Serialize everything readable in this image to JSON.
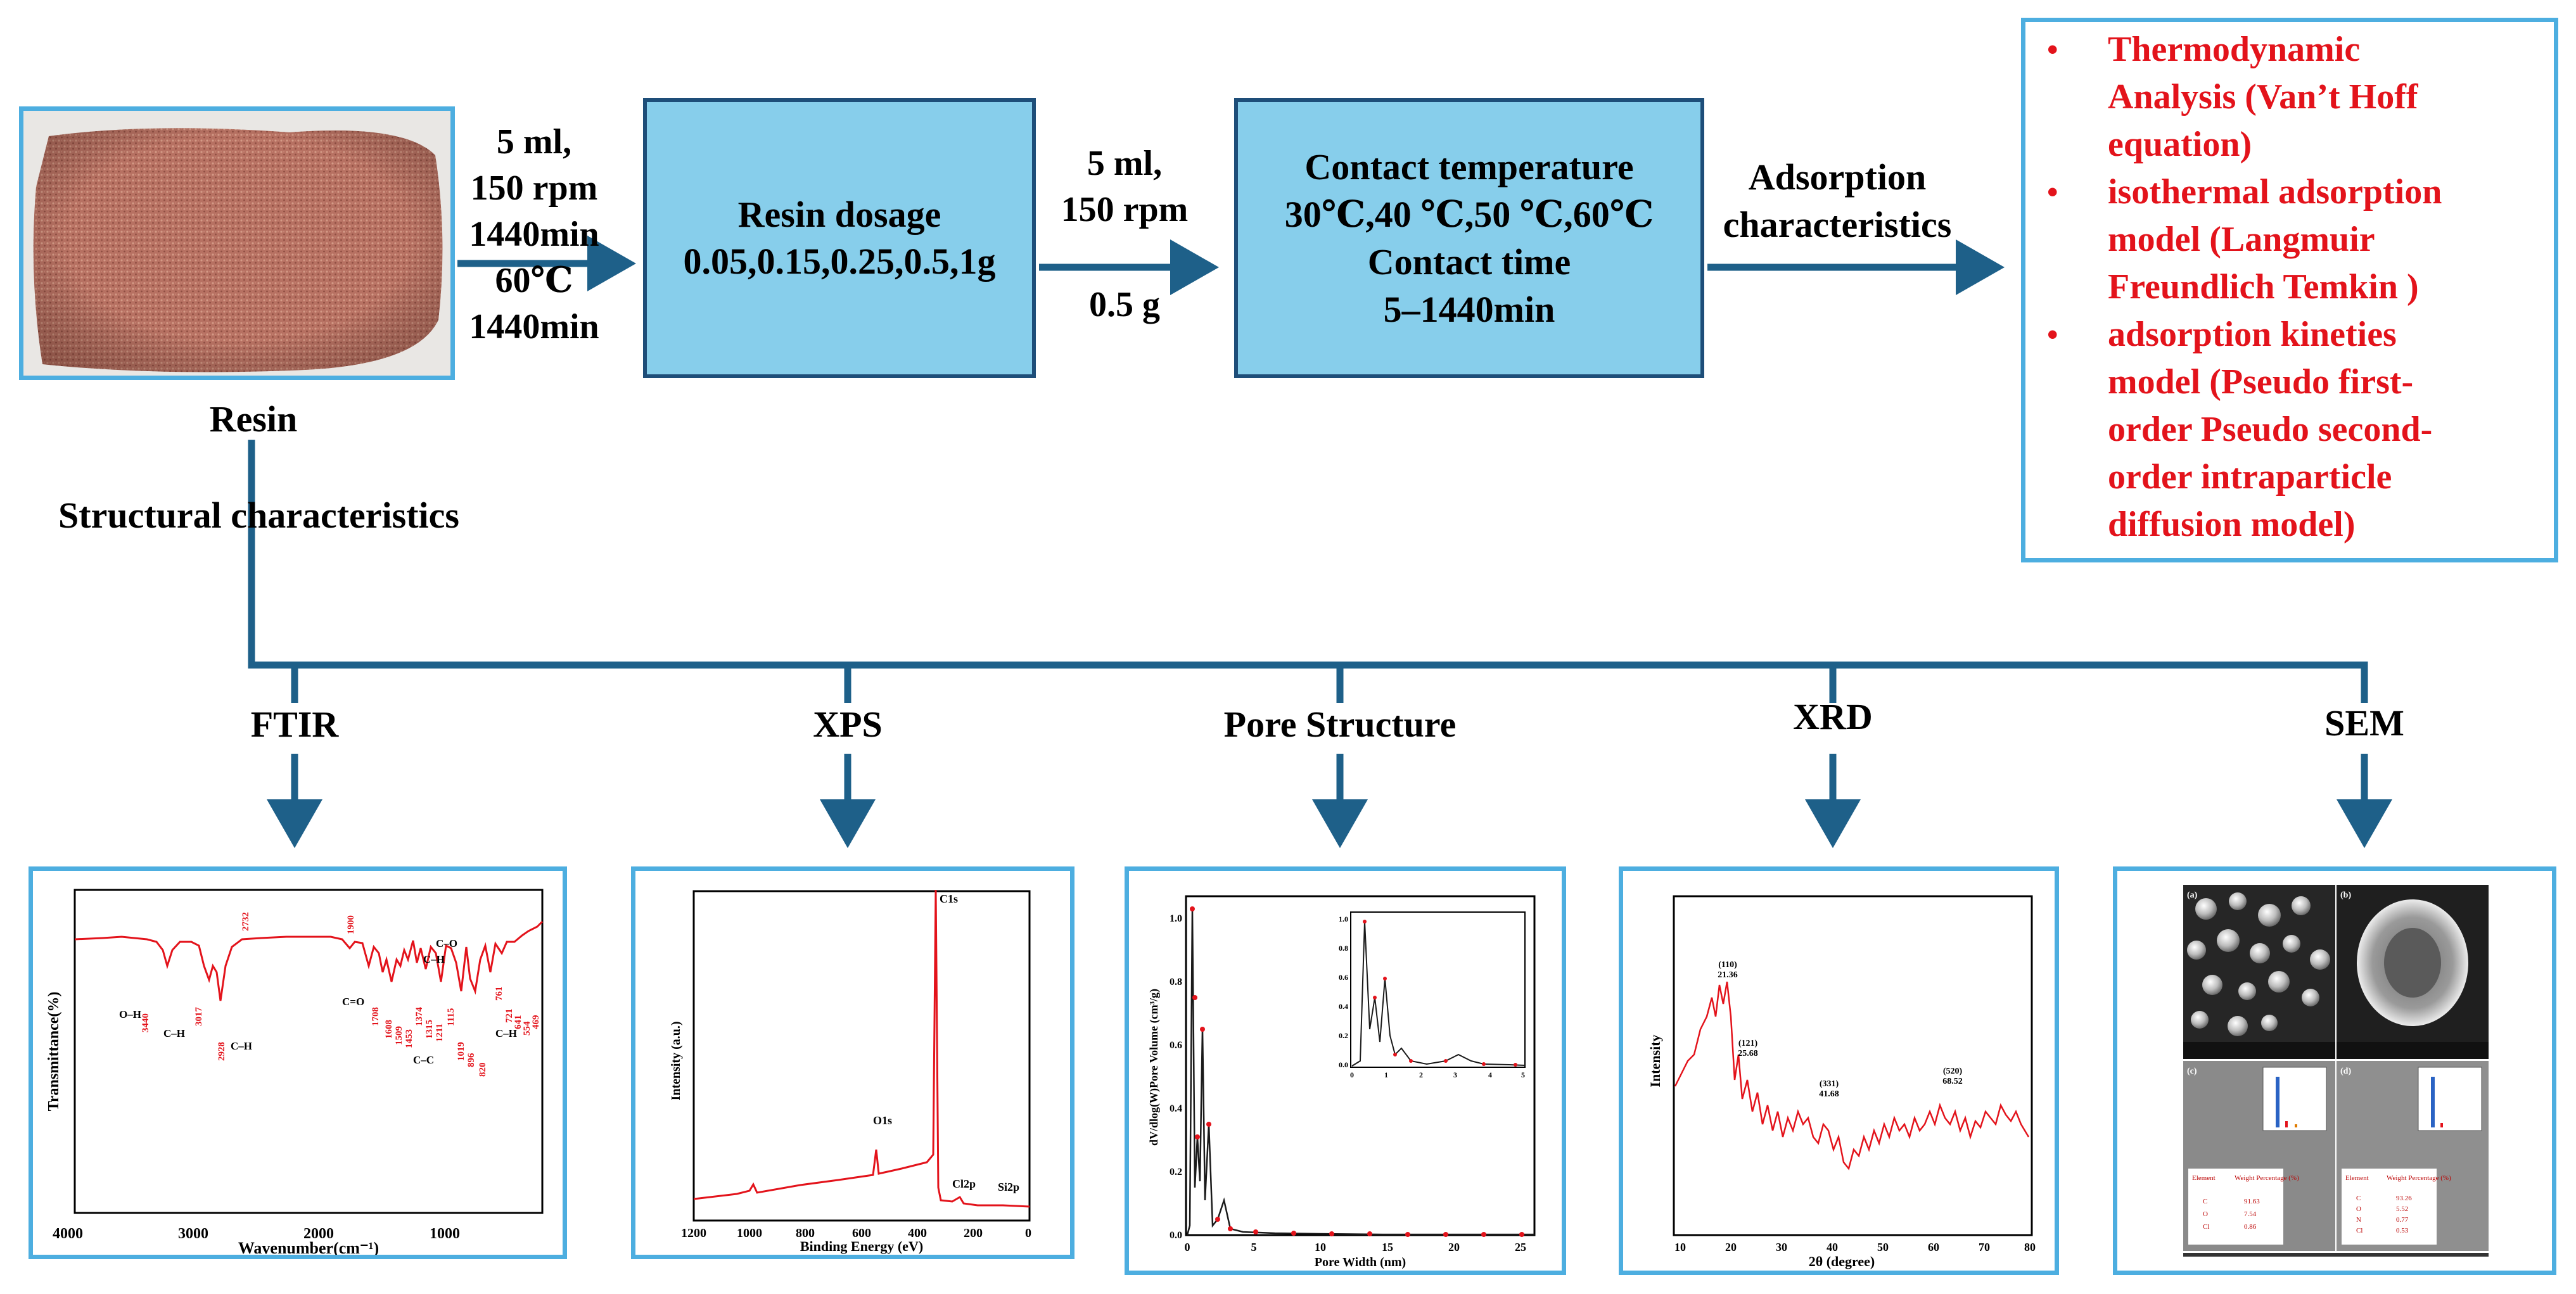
{
  "colors": {
    "arrow": "#1e6089",
    "box_fill": "#87ceeb",
    "box_border": "#1e4e79",
    "panel_border": "#4daee0",
    "method_text": "#e3131b",
    "spectrum_line": "#e3131b"
  },
  "resin_photo": {
    "label": "Resin"
  },
  "step1_params": [
    "5 ml,",
    "150 rpm",
    "1440min",
    "60℃",
    "1440min"
  ],
  "dosage_box": {
    "title": "Resin dosage",
    "values": "0.05,0.15,0.25,0.5,1g"
  },
  "step2_params": {
    "top": [
      "5 ml,",
      "150 rpm"
    ],
    "bottom": "0.5 g"
  },
  "temperature_box": {
    "line1": "Contact temperature",
    "line2": "30℃,40 ℃,50 ℃,60℃",
    "line3": "Contact time",
    "line4": "5–1440min"
  },
  "adsorption_label": [
    "Adsorption",
    "characteristics"
  ],
  "methods": [
    {
      "bullet": "•",
      "text": "Thermodynamic\nAnalysis (Van’t Hoff\nequation)"
    },
    {
      "bullet": "•",
      "text": " isothermal adsorption\nmodel (Langmuir\nFreundlich Temkin )"
    },
    {
      "bullet": "•",
      "text": "adsorption kineties\nmodel (Pseudo first-\norder Pseudo second-\norder intraparticle\ndiffusion model)"
    }
  ],
  "structural_label": "Structural characteristics",
  "techniques": [
    "FTIR",
    "XPS",
    "Pore Structure",
    "XRD",
    "SEM"
  ],
  "ftir": {
    "xlabel": "Wavenumber(cm⁻¹)",
    "ylabel": "Transmittance(%)",
    "x_ticks": [
      "4000",
      "3000",
      "2000",
      "1000"
    ],
    "peaks": [
      "3440",
      "3017",
      "2928",
      "2732",
      "1900",
      "1708",
      "1608",
      "1509",
      "1453",
      "1374",
      "1315",
      "1211",
      "1115",
      "1019",
      "896",
      "820",
      "761",
      "721",
      "641",
      "554",
      "469"
    ],
    "groups": [
      "O–H",
      "C–H",
      "C–H",
      "C=O",
      "C–H",
      "C–O",
      "C–C",
      "C–H"
    ]
  },
  "xps": {
    "xlabel": "Binding Energy (eV)",
    "ylabel": "Intensity (a.u.)",
    "x_ticks": [
      "1200",
      "1000",
      "800",
      "600",
      "400",
      "200",
      "0"
    ],
    "peaks": [
      "C1s",
      "O1s",
      "Cl2p",
      "Si2p"
    ]
  },
  "pore": {
    "xlabel": "Pore Width (nm)",
    "ylabel": "dV/dlog(W)Pore Volume (cm³/g)",
    "x_ticks": [
      "0",
      "5",
      "10",
      "15",
      "20",
      "25"
    ],
    "y_ticks": [
      "0.0",
      "0.2",
      "0.4",
      "0.6",
      "0.8",
      "1.0"
    ],
    "inset_x_ticks": [
      "0",
      "1",
      "2",
      "3",
      "4",
      "5"
    ],
    "inset_y_ticks": [
      "0.0",
      "0.2",
      "0.4",
      "0.6",
      "0.8",
      "1.0"
    ]
  },
  "xrd": {
    "xlabel": "2θ (degree)",
    "ylabel": "Intensity",
    "x_ticks": [
      "10",
      "20",
      "30",
      "40",
      "50",
      "60",
      "70",
      "80"
    ],
    "peaks": [
      {
        "hkl": "(110)",
        "pos": "21.36"
      },
      {
        "hkl": "(121)",
        "pos": "25.68"
      },
      {
        "hkl": "(331)",
        "pos": "41.68"
      },
      {
        "hkl": "(520)",
        "pos": "68.52"
      }
    ]
  },
  "sem": {
    "panels": [
      "(a)",
      "(b)",
      "(c)",
      "(d)"
    ],
    "table_c": {
      "header": [
        "Element",
        "Weight Percentage (%)"
      ],
      "rows": [
        [
          "C",
          "91.63"
        ],
        [
          "O",
          "7.54"
        ],
        [
          "Cl",
          "0.86"
        ]
      ]
    },
    "table_d": {
      "header": [
        "Element",
        "Weight Percentage (%)"
      ],
      "rows": [
        [
          "C",
          "93.26"
        ],
        [
          "O",
          "5.52"
        ],
        [
          "N",
          "0.77"
        ],
        [
          "Cl",
          "0.53"
        ]
      ]
    }
  }
}
